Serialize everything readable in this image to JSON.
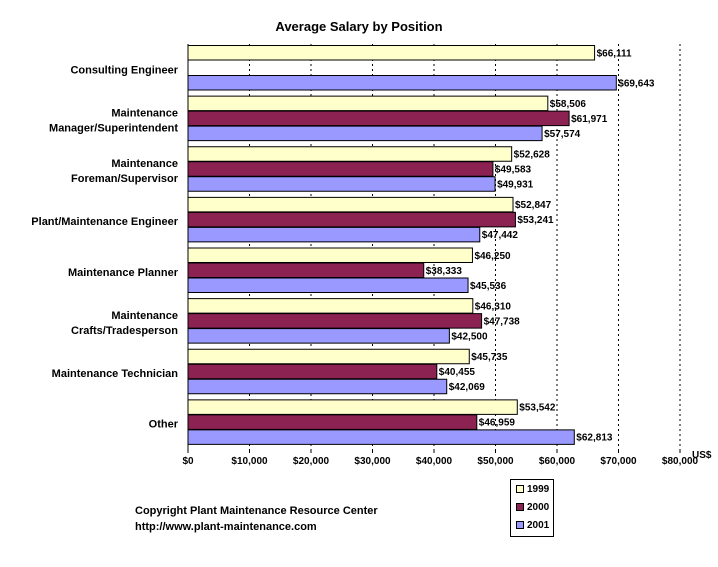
{
  "chart_data": {
    "type": "bar",
    "orientation": "horizontal",
    "title": "Average Salary by Position",
    "xlabel": "US$",
    "ylabel": "",
    "xlim": [
      0,
      80000
    ],
    "grid": true,
    "legend_position": "bottom-right",
    "x_tick_labels": [
      "$0",
      "$10,000",
      "$20,000",
      "$30,000",
      "$40,000",
      "$50,000",
      "$60,000",
      "$70,000",
      "$80,000"
    ],
    "x_ticks": [
      0,
      10000,
      20000,
      30000,
      40000,
      50000,
      60000,
      70000,
      80000
    ],
    "categories": [
      [
        "Consulting Engineer"
      ],
      [
        "Maintenance",
        "Manager/Superintendent"
      ],
      [
        "Maintenance",
        "Foreman/Supervisor"
      ],
      [
        "Plant/Maintenance Engineer"
      ],
      [
        "Maintenance Planner"
      ],
      [
        "Maintenance",
        "Crafts/Tradesperson"
      ],
      [
        "Maintenance Technician"
      ],
      [
        "Other"
      ]
    ],
    "series": [
      {
        "name": "1999",
        "color": "#ffffcc",
        "values": [
          66111,
          58506,
          52628,
          52847,
          46250,
          46310,
          45735,
          53542
        ],
        "labels": [
          "$66,111",
          "$58,506",
          "$52,628",
          "$52,847",
          "$46,250",
          "$46,310",
          "$45,735",
          "$53,542"
        ]
      },
      {
        "name": "2000",
        "color": "#8b2252",
        "values": [
          null,
          61971,
          49583,
          53241,
          38333,
          47738,
          40455,
          46959
        ],
        "labels": [
          "",
          "$61,971",
          "$49,583",
          "$53,241",
          "$38,333",
          "$47,738",
          "$40,455",
          "$46,959"
        ]
      },
      {
        "name": "2001",
        "color": "#9999ff",
        "values": [
          69643,
          57574,
          49931,
          47442,
          45536,
          42500,
          42069,
          62813
        ],
        "labels": [
          "$69,643",
          "$57,574",
          "$49,931",
          "$47,442",
          "$45,536",
          "$42,500",
          "$42,069",
          "$62,813"
        ]
      }
    ]
  },
  "footer": {
    "copyright": "Copyright Plant Maintenance Resource Center",
    "url": "http://www.plant-maintenance.com"
  },
  "colors": {
    "series_1999": "#ffffcc",
    "series_2000": "#8b2252",
    "series_2001": "#9999ff",
    "border": "#000000"
  }
}
